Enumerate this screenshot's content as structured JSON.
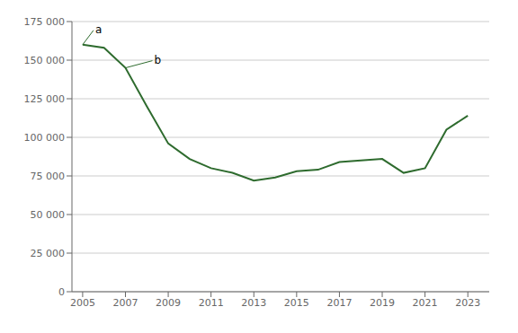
{
  "chart_data": {
    "type": "line",
    "x": [
      2005,
      2006,
      2007,
      2008,
      2009,
      2010,
      2011,
      2012,
      2013,
      2014,
      2015,
      2016,
      2017,
      2018,
      2019,
      2020,
      2021,
      2022,
      2023
    ],
    "values": [
      160000,
      158000,
      145000,
      120000,
      96000,
      86000,
      80000,
      77000,
      72000,
      74000,
      78000,
      79000,
      84000,
      85000,
      86000,
      77000,
      80000,
      105000,
      114000
    ],
    "color": "#2E6B2E",
    "xlim": [
      2004.5,
      2024.0
    ],
    "ylim": [
      0,
      175000
    ],
    "xticks": [
      2005,
      2007,
      2009,
      2011,
      2013,
      2015,
      2017,
      2019,
      2021,
      2023
    ],
    "yticks": [
      0,
      {
        "value": 25000,
        "label": "25 000"
      },
      {
        "value": 50000,
        "label": "50 000"
      },
      {
        "value": 75000,
        "label": "75 000"
      },
      {
        "value": 100000,
        "label": "100 000"
      },
      {
        "value": 125000,
        "label": "125 000"
      },
      {
        "value": 150000,
        "label": "150 000"
      },
      {
        "value": 175000,
        "label": "175 000"
      }
    ],
    "grid": true,
    "annotations": [
      {
        "text": "a",
        "x": 2005,
        "y": 160000
      },
      {
        "text": "b",
        "x": 2007,
        "y": 145000
      }
    ]
  }
}
